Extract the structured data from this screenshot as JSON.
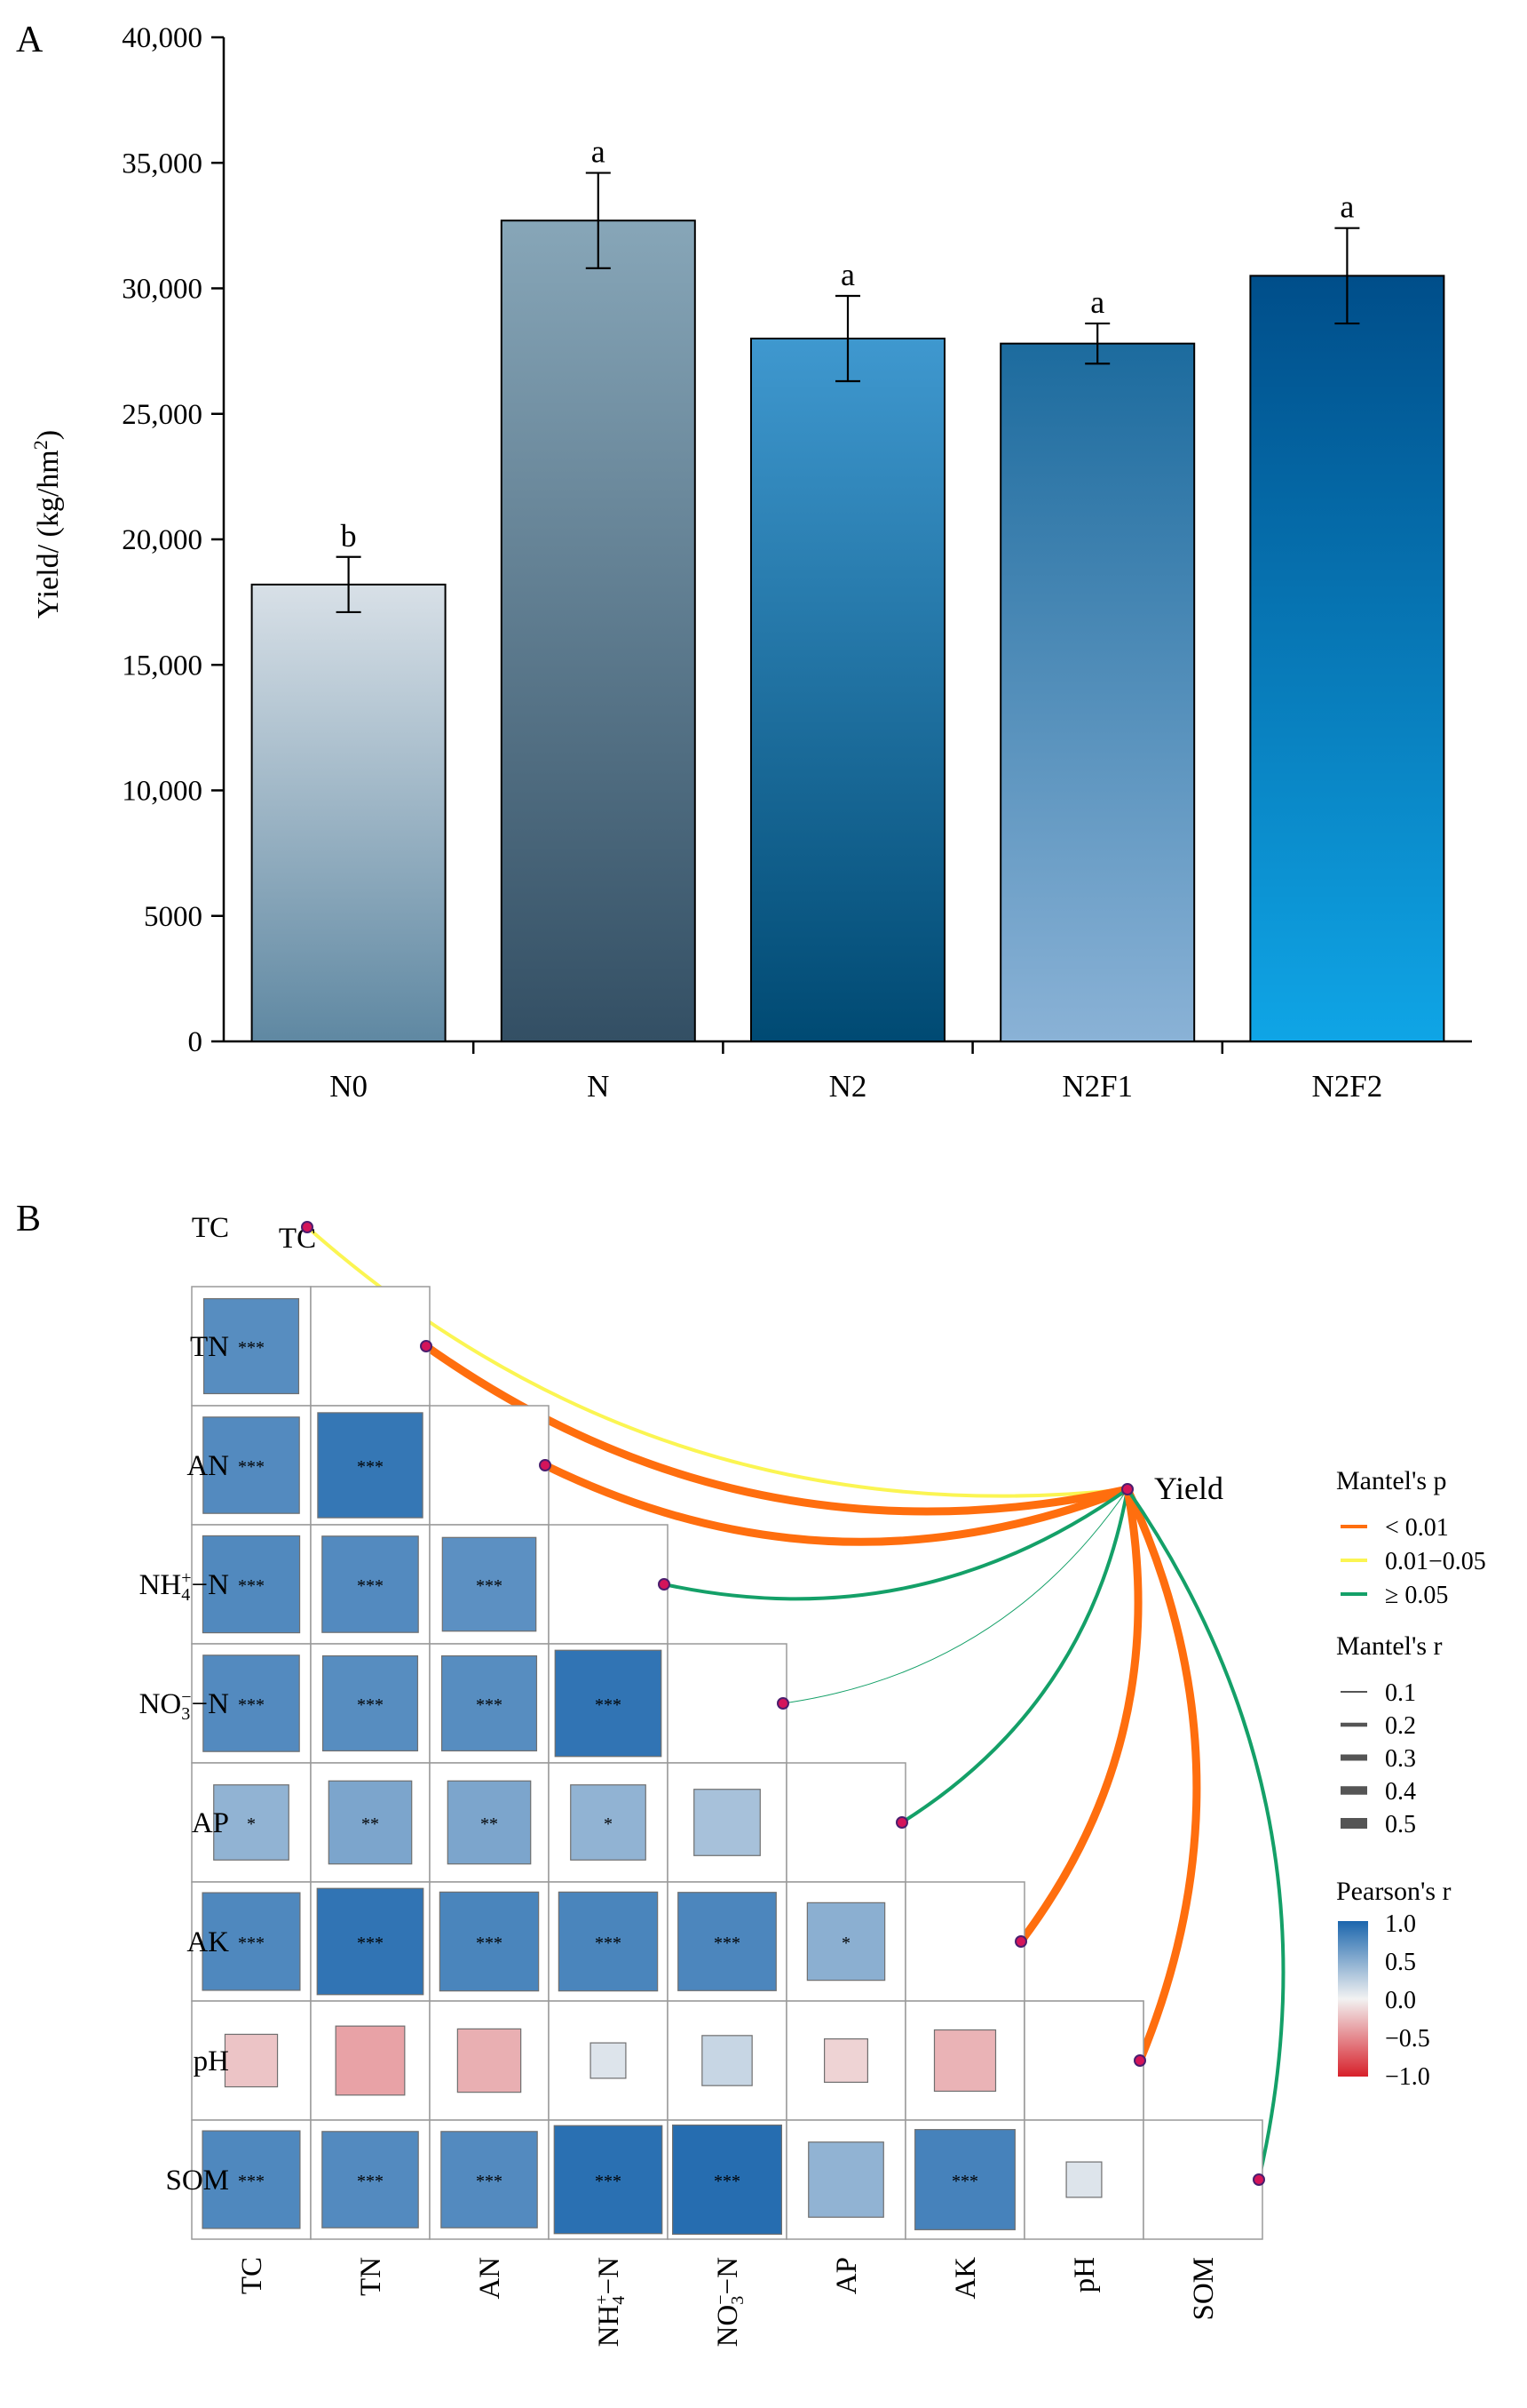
{
  "chart_data": [
    {
      "panel": "A",
      "type": "bar",
      "ylabel": "Yield/ (kg/hm",
      "ylabel_sup": "2",
      "ylabel_end": ")",
      "ylim": [
        0,
        40000
      ],
      "yticks": [
        0,
        5000,
        10000,
        15000,
        20000,
        25000,
        30000,
        35000,
        40000
      ],
      "ytick_labels": [
        "0",
        "5000",
        "10,000",
        "15,000",
        "20,000",
        "25,000",
        "30,000",
        "35,000",
        "40,000"
      ],
      "categories": [
        "N0",
        "N",
        "N2",
        "N2F1",
        "N2F2"
      ],
      "values": [
        18200,
        32700,
        28000,
        27800,
        30500
      ],
      "errors": [
        1100,
        1900,
        1700,
        800,
        1900
      ],
      "significance": [
        "b",
        "a",
        "a",
        "a",
        "a"
      ],
      "bar_gradients": [
        [
          "#d8e0e7",
          "#5f88a2"
        ],
        [
          "#87a6b8",
          "#334f64"
        ],
        [
          "#3f98cf",
          "#004a73"
        ],
        [
          "#1c6b9e",
          "#8ab2d6"
        ],
        [
          "#004e8a",
          "#0fa5e6"
        ]
      ]
    },
    {
      "panel": "B",
      "type": "heatmap",
      "variables": [
        "TC",
        "TN",
        "AN",
        "NH4+−N",
        "NO3−−N",
        "AP",
        "AK",
        "pH",
        "SOM"
      ],
      "pearson_lower": [
        {
          "row": "TN",
          "values": [
            {
              "r": 0.72,
              "sig": "***"
            }
          ]
        },
        {
          "row": "AN",
          "values": [
            {
              "r": 0.74,
              "sig": "***"
            },
            {
              "r": 0.88,
              "sig": "***"
            }
          ]
        },
        {
          "row": "NH4+−N",
          "values": [
            {
              "r": 0.75,
              "sig": "***"
            },
            {
              "r": 0.74,
              "sig": "***"
            },
            {
              "r": 0.7,
              "sig": "***"
            }
          ]
        },
        {
          "row": "NO3−−N",
          "values": [
            {
              "r": 0.74,
              "sig": "***"
            },
            {
              "r": 0.72,
              "sig": "***"
            },
            {
              "r": 0.72,
              "sig": "***"
            },
            {
              "r": 0.9,
              "sig": "***"
            }
          ]
        },
        {
          "row": "AP",
          "values": [
            {
              "r": 0.45,
              "sig": "*"
            },
            {
              "r": 0.55,
              "sig": "**"
            },
            {
              "r": 0.55,
              "sig": "**"
            },
            {
              "r": 0.45,
              "sig": "*"
            },
            {
              "r": 0.35,
              "sig": ""
            }
          ]
        },
        {
          "row": "AK",
          "values": [
            {
              "r": 0.76,
              "sig": "***"
            },
            {
              "r": 0.9,
              "sig": "***"
            },
            {
              "r": 0.78,
              "sig": "***"
            },
            {
              "r": 0.78,
              "sig": "***"
            },
            {
              "r": 0.77,
              "sig": "***"
            },
            {
              "r": 0.48,
              "sig": "*"
            }
          ]
        },
        {
          "row": "pH",
          "values": [
            {
              "r": -0.22,
              "sig": ""
            },
            {
              "r": -0.38,
              "sig": ""
            },
            {
              "r": -0.32,
              "sig": ""
            },
            {
              "r": 0.1,
              "sig": ""
            },
            {
              "r": 0.2,
              "sig": ""
            },
            {
              "r": -0.15,
              "sig": ""
            },
            {
              "r": -0.3,
              "sig": ""
            },
            null
          ]
        },
        {
          "row": "SOM",
          "values": [
            {
              "r": 0.76,
              "sig": "***"
            },
            {
              "r": 0.74,
              "sig": "***"
            },
            {
              "r": 0.74,
              "sig": "***"
            },
            {
              "r": 0.93,
              "sig": "***"
            },
            {
              "r": 0.95,
              "sig": "***"
            },
            {
              "r": 0.45,
              "sig": ""
            },
            {
              "r": 0.8,
              "sig": "***"
            },
            {
              "r": 0.1,
              "sig": ""
            }
          ]
        }
      ],
      "mantel": {
        "target": "Yield",
        "links": [
          {
            "var": "TC",
            "p_class": "0.01−0.05",
            "r": 0.2
          },
          {
            "var": "TN",
            "p_class": "< 0.01",
            "r": 0.45
          },
          {
            "var": "AN",
            "p_class": "< 0.01",
            "r": 0.45
          },
          {
            "var": "NH4+−N",
            "p_class": "≥ 0.05",
            "r": 0.2
          },
          {
            "var": "NO3−−N",
            "p_class": "≥ 0.05",
            "r": 0.02
          },
          {
            "var": "AP",
            "p_class": "≥ 0.05",
            "r": 0.2
          },
          {
            "var": "AK",
            "p_class": "< 0.01",
            "r": 0.45
          },
          {
            "var": "pH",
            "p_class": "< 0.01",
            "r": 0.45
          },
          {
            "var": "SOM",
            "p_class": "≥ 0.05",
            "r": 0.2
          }
        ]
      },
      "legend": {
        "p_title": "Mantel's p",
        "p_items": [
          {
            "label": "< 0.01",
            "color": "#ff6e0e"
          },
          {
            "label": "0.01−0.05",
            "color": "#fbf552"
          },
          {
            "label": "≥ 0.05",
            "color": "#14a068"
          }
        ],
        "r_title": "Mantel's r",
        "r_items": [
          "0.1",
          "0.2",
          "0.3",
          "0.4",
          "0.5"
        ],
        "pearson_title": "Pearson's r",
        "pearson_ticks": [
          "1.0",
          "0.5",
          "0.0",
          "−0.5",
          "−1.0"
        ]
      }
    }
  ],
  "labels": {
    "panel_a": "A",
    "panel_b": "B",
    "tc_top_tag": "TC",
    "yield_label": "Yield"
  },
  "colors": {
    "negative": "#d7202a",
    "neutral": "#f2f2f2",
    "positive": "#1b66ad"
  }
}
